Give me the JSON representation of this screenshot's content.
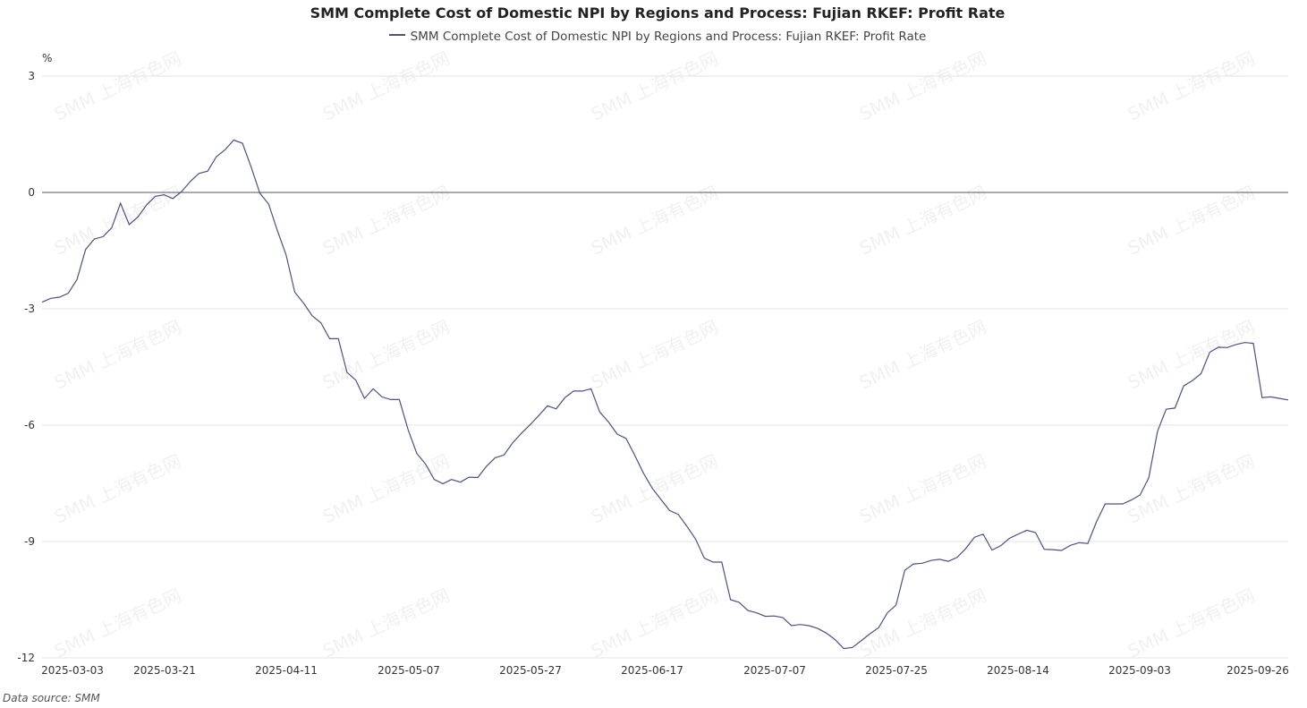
{
  "source_label": "Data source:  SMM",
  "watermark_text": "SMM 上海有色网",
  "chart_data": {
    "type": "line",
    "title": "SMM Complete Cost of Domestic NPI by Regions and Process: Fujian RKEF: Profit Rate",
    "xlabel": "",
    "ylabel": "%",
    "ylim": [
      -12,
      3
    ],
    "yticks": [
      3,
      0,
      -3,
      -6,
      -9,
      -12
    ],
    "xticks": [
      "2025-03-03",
      "2025-03-21",
      "2025-04-11",
      "2025-05-07",
      "2025-05-27",
      "2025-06-17",
      "2025-07-07",
      "2025-07-25",
      "2025-08-14",
      "2025-09-03",
      "2025-09-26"
    ],
    "grid": true,
    "legend": "top-center",
    "line_color": "#4a5285",
    "series": [
      {
        "name": "SMM Complete Cost of Domestic NPI by Regions and Process: Fujian RKEF: Profit Rate",
        "values": [
          -2.83,
          -2.73,
          -2.7,
          -2.6,
          -2.25,
          -1.47,
          -1.2,
          -1.14,
          -0.91,
          -0.28,
          -0.83,
          -0.63,
          -0.32,
          -0.1,
          -0.06,
          -0.16,
          0.02,
          0.28,
          0.49,
          0.55,
          0.92,
          1.1,
          1.35,
          1.27,
          0.65,
          -0.02,
          -0.3,
          -0.98,
          -1.61,
          -2.57,
          -2.85,
          -3.18,
          -3.36,
          -3.77,
          -3.77,
          -4.64,
          -4.84,
          -5.31,
          -5.06,
          -5.27,
          -5.34,
          -5.34,
          -6.11,
          -6.73,
          -7.0,
          -7.4,
          -7.51,
          -7.4,
          -7.47,
          -7.34,
          -7.35,
          -7.06,
          -6.84,
          -6.77,
          -6.46,
          -6.21,
          -5.99,
          -5.75,
          -5.5,
          -5.58,
          -5.29,
          -5.12,
          -5.12,
          -5.06,
          -5.66,
          -5.92,
          -6.23,
          -6.34,
          -6.77,
          -7.23,
          -7.62,
          -7.91,
          -8.2,
          -8.3,
          -8.61,
          -8.94,
          -9.43,
          -9.53,
          -9.53,
          -10.5,
          -10.57,
          -10.78,
          -10.84,
          -10.93,
          -10.92,
          -10.96,
          -11.17,
          -11.14,
          -11.17,
          -11.24,
          -11.36,
          -11.53,
          -11.76,
          -11.73,
          -11.56,
          -11.38,
          -11.22,
          -10.84,
          -10.64,
          -9.74,
          -9.58,
          -9.56,
          -9.49,
          -9.46,
          -9.51,
          -9.41,
          -9.18,
          -8.89,
          -8.81,
          -9.22,
          -9.11,
          -8.92,
          -8.81,
          -8.71,
          -8.77,
          -9.2,
          -9.21,
          -9.23,
          -9.1,
          -9.03,
          -9.05,
          -8.49,
          -8.03,
          -8.03,
          -8.03,
          -7.93,
          -7.8,
          -7.36,
          -6.16,
          -5.59,
          -5.56,
          -4.99,
          -4.85,
          -4.67,
          -4.12,
          -3.99,
          -4.0,
          -3.92,
          -3.87,
          -3.89,
          -5.29,
          -5.27,
          -5.31,
          -5.35
        ]
      }
    ]
  }
}
